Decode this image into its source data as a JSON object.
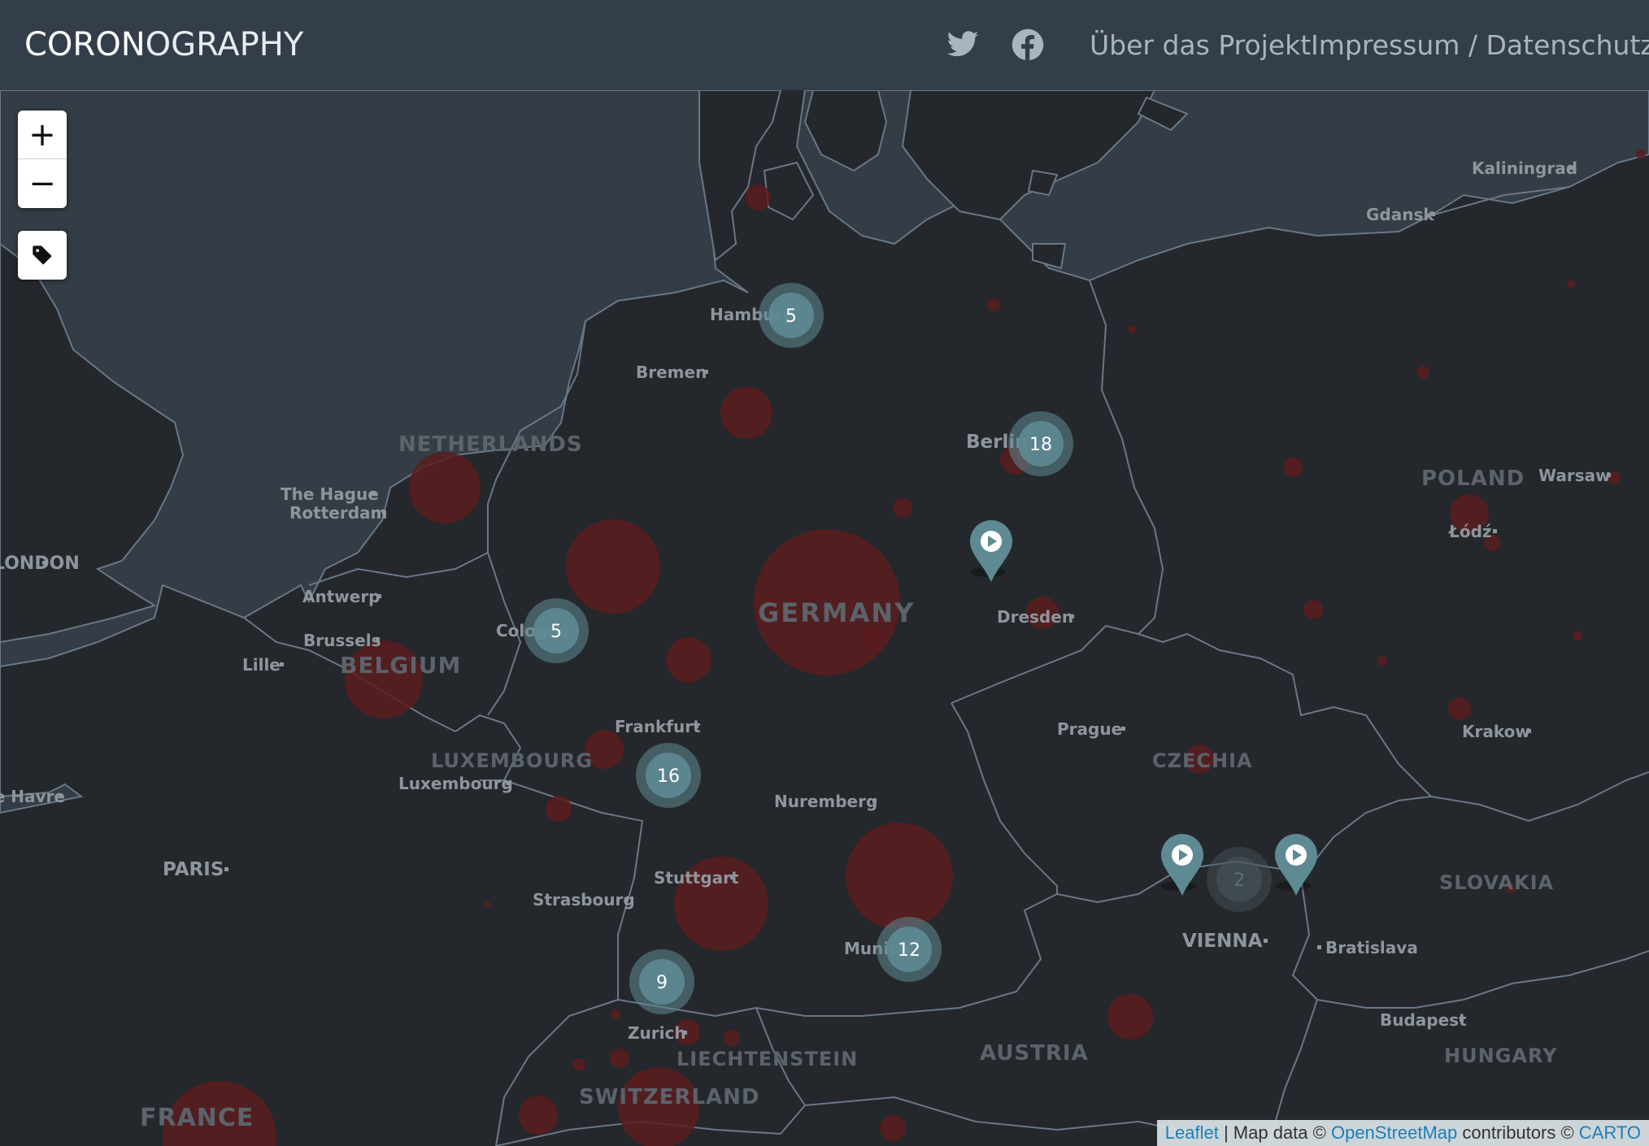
{
  "header": {
    "brand_bold": "CORON",
    "brand_light": "OGRAPHY",
    "twitter_icon": "twitter-icon",
    "facebook_icon": "facebook-icon",
    "links": [
      "Über das Projekt",
      "Impressum / Datenschutz"
    ]
  },
  "controls": {
    "zoom_in": "+",
    "zoom_out": "−",
    "tag_icon": "tag-icon"
  },
  "countries": [
    "NETHERLANDS",
    "BELGIUM",
    "LUXEMBOURG",
    "GERMANY",
    "POLAND",
    "CZECHIA",
    "SLOVAKIA",
    "AUSTRIA",
    "HUNGARY",
    "SWITZERLAND",
    "LIECHTENSTEIN",
    "FRANCE"
  ],
  "cities": [
    "Kaliningrad",
    "Gdansk",
    "Hamburg",
    "Bremen",
    "Berlin",
    "Warsaw",
    "Łódź",
    "The Hague",
    "Rotterdam",
    "LONDON",
    "Antwerp",
    "Brussels",
    "Lille",
    "Cologne",
    "Dresden",
    "Frankfurt",
    "Prague",
    "Krakow",
    "Luxembourg",
    "Le Havre",
    "Nuremberg",
    "PARIS",
    "Stuttgart",
    "Strasbourg",
    "VIENNA",
    "Bratislava",
    "Munich",
    "Budapest",
    "Zurich"
  ],
  "clusters": [
    {
      "label": "5",
      "near": "Hamburg"
    },
    {
      "label": "18",
      "near": "Berlin"
    },
    {
      "label": "5",
      "near": "Cologne"
    },
    {
      "label": "16",
      "near": "Frankfurt"
    },
    {
      "label": "12",
      "near": "Munich"
    },
    {
      "label": "9",
      "near": "Zurich"
    },
    {
      "label": "2",
      "near": "Vienna"
    }
  ],
  "markers": [
    "video-marker-1",
    "video-marker-2",
    "video-marker-3"
  ],
  "attribution": {
    "leaflet": "Leaflet",
    "sep1": " | Map data © ",
    "osm": "OpenStreetMap",
    "sep2": " contributors © ",
    "carto": "CARTO"
  },
  "colors": {
    "land": "#24282c",
    "water": "#343c45",
    "border": "#6a7786",
    "navbar": "#343e4a",
    "cluster": "#5e8a94",
    "case_circle": "#5a1c1e"
  }
}
